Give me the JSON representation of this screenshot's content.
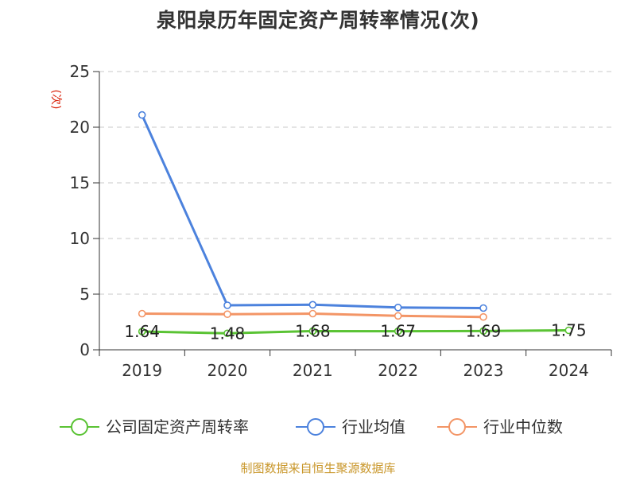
{
  "chart_data": {
    "type": "line",
    "title": "泉阳泉历年固定资产周转率情况(次)",
    "ylabel": "(次)",
    "ylim": [
      0,
      25
    ],
    "yticks": [
      0,
      5,
      10,
      15,
      20,
      25
    ],
    "categories": [
      "2019",
      "2020",
      "2021",
      "2022",
      "2023",
      "2024"
    ],
    "grid": true,
    "legend_position": "bottom",
    "series": [
      {
        "name": "公司固定资产周转率",
        "color": "#5ac334",
        "values": [
          1.64,
          1.48,
          1.68,
          1.67,
          1.69,
          1.75
        ],
        "labels": [
          "1.64",
          "1.48",
          "1.68",
          "1.67",
          "1.69",
          "1.75"
        ]
      },
      {
        "name": "行业均值",
        "color": "#4c82dd",
        "values": [
          21.1,
          4.0,
          4.05,
          3.8,
          3.75,
          null
        ]
      },
      {
        "name": "行业中位数",
        "color": "#f39566",
        "values": [
          3.25,
          3.2,
          3.25,
          3.05,
          2.95,
          null
        ]
      }
    ]
  },
  "source": "制图数据来自恒生聚源数据库"
}
